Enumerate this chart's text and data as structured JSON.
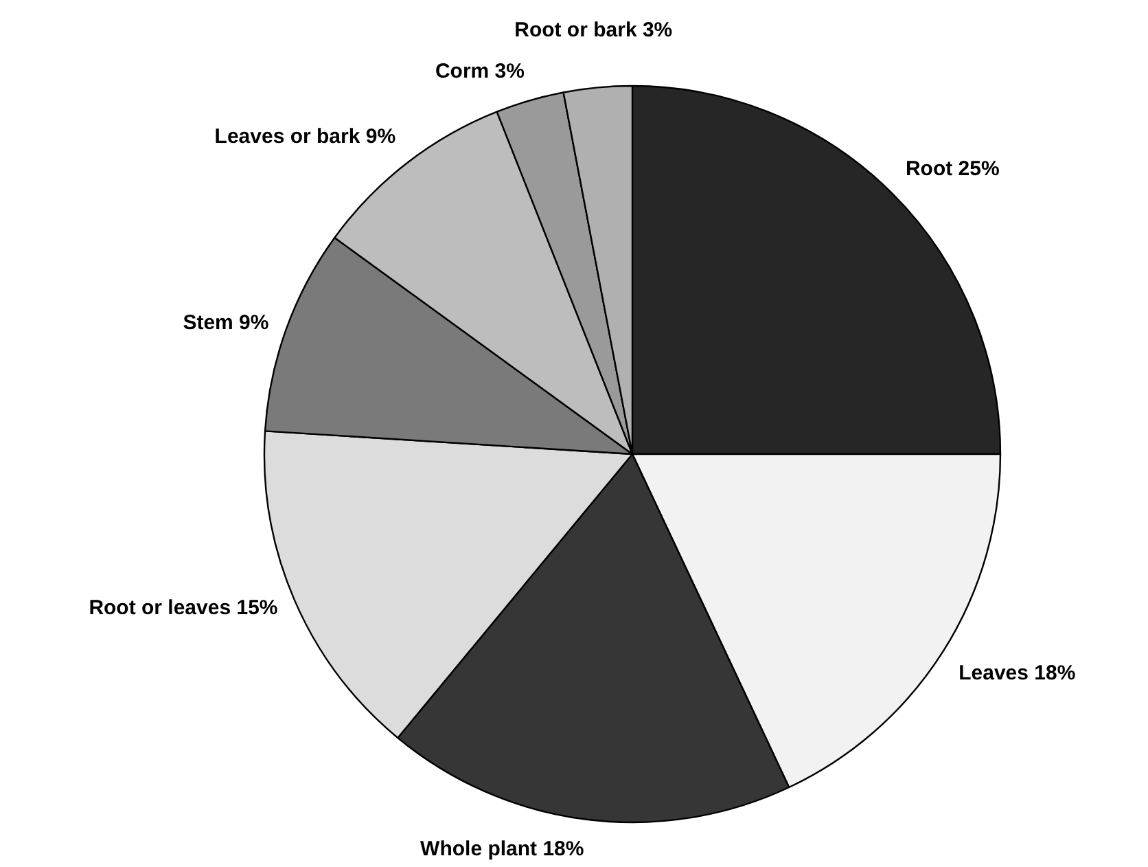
{
  "chart_data": {
    "type": "pie",
    "categories": [
      "Root",
      "Leaves",
      "Whole plant",
      "Root or leaves",
      "Stem",
      "Leaves or bark",
      "Corm",
      "Root or bark"
    ],
    "values": [
      25,
      18,
      18,
      15,
      9,
      9,
      3,
      3
    ],
    "value_labels": [
      "25%",
      "18%",
      "18%",
      "15%",
      "9%",
      "9%",
      "3%",
      "3%"
    ],
    "colors": [
      "#262626",
      "#f2f2f2",
      "#363636",
      "#dcdcdc",
      "#7a7a7a",
      "#bdbdbd",
      "#9a9a9a",
      "#b0b0b0"
    ]
  }
}
